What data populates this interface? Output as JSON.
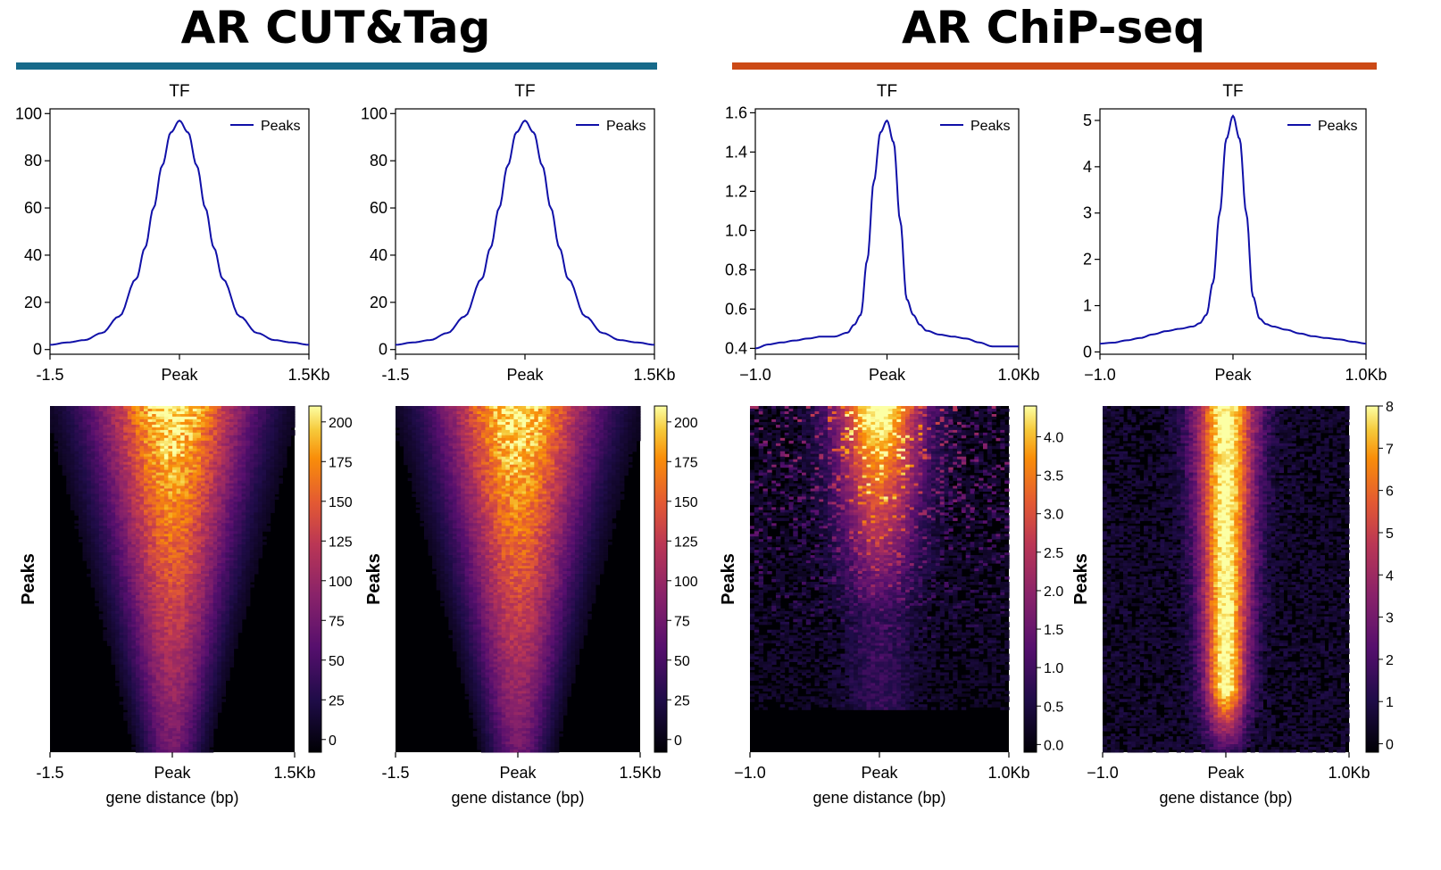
{
  "sections": [
    {
      "title": "AR CUT&Tag",
      "color": "#176a8a"
    },
    {
      "title": "AR ChiP-seq",
      "color": "#cc4a16"
    }
  ],
  "colors": {
    "profile_line": "#1010a8",
    "heatmap_colormap": "inferno"
  },
  "chart_data": [
    {
      "type": "line",
      "title": "TF",
      "legend": "Peaks",
      "legend_position": "top-right",
      "xticks": [
        "-1.5",
        "Peak",
        "1.5Kb"
      ],
      "xlim": [
        -1500,
        1500
      ],
      "ylim": [
        -2,
        102
      ],
      "yticks": [
        "0",
        "20",
        "40",
        "60",
        "80",
        "100"
      ],
      "ytick_values": [
        0,
        20,
        40,
        60,
        80,
        100
      ],
      "series": [
        {
          "name": "Peaks",
          "x": [
            -1500,
            -1300,
            -1100,
            -900,
            -700,
            -500,
            -400,
            -300,
            -200,
            -100,
            0,
            100,
            200,
            300,
            400,
            500,
            700,
            900,
            1100,
            1300,
            1500
          ],
          "y": [
            2,
            3,
            4,
            7,
            14,
            30,
            43,
            60,
            78,
            92,
            97,
            92,
            78,
            60,
            43,
            30,
            14,
            7,
            4,
            3,
            2
          ]
        }
      ]
    },
    {
      "type": "heatmap",
      "ylabel": "Peaks",
      "xlabel": "gene distance (bp)",
      "xticks": [
        "-1.5",
        "Peak",
        "1.5Kb"
      ],
      "colorbar_range": [
        -8,
        210
      ],
      "colorbar_ticks": [
        "0",
        "25",
        "50",
        "75",
        "100",
        "125",
        "150",
        "175",
        "200"
      ],
      "colorbar_values": [
        0,
        25,
        50,
        75,
        100,
        125,
        150,
        175,
        200
      ],
      "pattern": "broad-v"
    },
    {
      "type": "line",
      "title": "TF",
      "legend": "Peaks",
      "legend_position": "top-right",
      "xticks": [
        "-1.5",
        "Peak",
        "1.5Kb"
      ],
      "xlim": [
        -1500,
        1500
      ],
      "ylim": [
        -2,
        102
      ],
      "yticks": [
        "0",
        "20",
        "40",
        "60",
        "80",
        "100"
      ],
      "ytick_values": [
        0,
        20,
        40,
        60,
        80,
        100
      ],
      "series": [
        {
          "name": "Peaks",
          "x": [
            -1500,
            -1300,
            -1100,
            -900,
            -700,
            -500,
            -400,
            -300,
            -200,
            -100,
            0,
            100,
            200,
            300,
            400,
            500,
            700,
            900,
            1100,
            1300,
            1500
          ],
          "y": [
            2,
            3,
            4,
            7,
            14,
            30,
            43,
            60,
            78,
            92,
            97,
            92,
            78,
            60,
            43,
            30,
            14,
            7,
            4,
            3,
            2
          ]
        }
      ]
    },
    {
      "type": "heatmap",
      "ylabel": "Peaks",
      "xlabel": "gene distance (bp)",
      "xticks": [
        "-1.5",
        "Peak",
        "1.5Kb"
      ],
      "colorbar_range": [
        -8,
        210
      ],
      "colorbar_ticks": [
        "0",
        "25",
        "50",
        "75",
        "100",
        "125",
        "150",
        "175",
        "200"
      ],
      "colorbar_values": [
        0,
        25,
        50,
        75,
        100,
        125,
        150,
        175,
        200
      ],
      "pattern": "broad-v"
    },
    {
      "type": "line",
      "title": "TF",
      "legend": "Peaks",
      "legend_position": "top-right",
      "xticks": [
        "−1.0",
        "Peak",
        "1.0Kb"
      ],
      "xlim": [
        -1000,
        1000
      ],
      "ylim": [
        0.37,
        1.62
      ],
      "yticks": [
        "0.4",
        "0.6",
        "0.8",
        "1.0",
        "1.2",
        "1.4",
        "1.6"
      ],
      "ytick_values": [
        0.4,
        0.6,
        0.8,
        1.0,
        1.2,
        1.4,
        1.6
      ],
      "series": [
        {
          "name": "Peaks",
          "x": [
            -1000,
            -900,
            -800,
            -700,
            -600,
            -500,
            -400,
            -300,
            -250,
            -200,
            -150,
            -100,
            -50,
            0,
            50,
            100,
            150,
            200,
            250,
            300,
            400,
            500,
            600,
            700,
            800,
            900,
            1000
          ],
          "y": [
            0.4,
            0.42,
            0.43,
            0.44,
            0.45,
            0.46,
            0.46,
            0.48,
            0.52,
            0.57,
            0.85,
            1.25,
            1.5,
            1.56,
            1.45,
            1.05,
            0.65,
            0.57,
            0.52,
            0.49,
            0.47,
            0.46,
            0.45,
            0.43,
            0.41,
            0.41,
            0.41
          ]
        }
      ]
    },
    {
      "type": "heatmap",
      "ylabel": "Peaks",
      "xlabel": "gene distance (bp)",
      "xticks": [
        "−1.0",
        "Peak",
        "1.0Kb"
      ],
      "colorbar_range": [
        -0.1,
        4.4
      ],
      "colorbar_ticks": [
        "0.0",
        "0.5",
        "1.0",
        "1.5",
        "2.0",
        "2.5",
        "3.0",
        "3.5",
        "4.0"
      ],
      "colorbar_values": [
        0,
        0.5,
        1.0,
        1.5,
        2.0,
        2.5,
        3.0,
        3.5,
        4.0
      ],
      "pattern": "noisy-top"
    },
    {
      "type": "line",
      "title": "TF",
      "legend": "Peaks",
      "legend_position": "top-right",
      "xticks": [
        "−1.0",
        "Peak",
        "1.0Kb"
      ],
      "xlim": [
        -1000,
        1000
      ],
      "ylim": [
        -0.05,
        5.25
      ],
      "yticks": [
        "0",
        "1",
        "2",
        "3",
        "4",
        "5"
      ],
      "ytick_values": [
        0,
        1,
        2,
        3,
        4,
        5
      ],
      "series": [
        {
          "name": "Peaks",
          "x": [
            -1000,
            -900,
            -800,
            -700,
            -600,
            -500,
            -400,
            -300,
            -250,
            -200,
            -150,
            -100,
            -50,
            0,
            50,
            100,
            150,
            200,
            250,
            300,
            400,
            500,
            600,
            700,
            800,
            900,
            1000
          ],
          "y": [
            0.18,
            0.2,
            0.25,
            0.3,
            0.38,
            0.45,
            0.5,
            0.55,
            0.62,
            0.8,
            1.5,
            3.0,
            4.6,
            5.1,
            4.6,
            3.0,
            1.2,
            0.72,
            0.6,
            0.55,
            0.48,
            0.4,
            0.34,
            0.3,
            0.27,
            0.22,
            0.18
          ]
        }
      ]
    },
    {
      "type": "heatmap",
      "ylabel": "Peaks",
      "xlabel": "gene distance (bp)",
      "xticks": [
        "−1.0",
        "Peak",
        "1.0Kb"
      ],
      "colorbar_range": [
        -0.2,
        8
      ],
      "colorbar_ticks": [
        "0",
        "1",
        "2",
        "3",
        "4",
        "5",
        "6",
        "7",
        "8"
      ],
      "colorbar_values": [
        0,
        1,
        2,
        3,
        4,
        5,
        6,
        7,
        8
      ],
      "pattern": "sharp-column"
    }
  ]
}
